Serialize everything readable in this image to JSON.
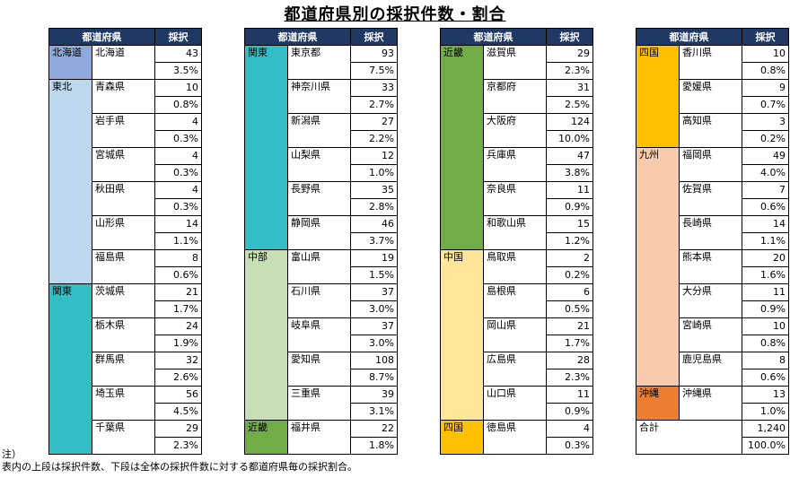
{
  "title": "都道府県別の採択件数・割合",
  "headers": {
    "pref": "都道府県",
    "count": "採択"
  },
  "colors": {
    "header_bg": "#1f3864",
    "hokkaido": "#8ea9db",
    "tohoku": "#bdd7ee",
    "kanto": "#33bdc4",
    "chubu": "#c6e0b4",
    "kinki": "#70ad47",
    "chugoku": "#ffe699",
    "shikoku": "#ffc000",
    "kyushu": "#f8cbad",
    "okinawa": "#ed7d31"
  },
  "blocks": [
    {
      "groups": [
        {
          "region": "北海道",
          "color": "hokkaido",
          "rows": [
            {
              "pref": "北海道",
              "count": "43",
              "pct": "3.5%"
            }
          ]
        },
        {
          "region": "東北",
          "color": "tohoku",
          "rows": [
            {
              "pref": "青森県",
              "count": "10",
              "pct": "0.8%"
            },
            {
              "pref": "岩手県",
              "count": "4",
              "pct": "0.3%"
            },
            {
              "pref": "宮城県",
              "count": "4",
              "pct": "0.3%"
            },
            {
              "pref": "秋田県",
              "count": "4",
              "pct": "0.3%"
            },
            {
              "pref": "山形県",
              "count": "14",
              "pct": "1.1%"
            },
            {
              "pref": "福島県",
              "count": "8",
              "pct": "0.6%"
            }
          ]
        },
        {
          "region": "関東",
          "color": "kanto",
          "rows": [
            {
              "pref": "茨城県",
              "count": "21",
              "pct": "1.7%"
            },
            {
              "pref": "栃木県",
              "count": "24",
              "pct": "1.9%"
            },
            {
              "pref": "群馬県",
              "count": "32",
              "pct": "2.6%"
            },
            {
              "pref": "埼玉県",
              "count": "56",
              "pct": "4.5%"
            },
            {
              "pref": "千葉県",
              "count": "29",
              "pct": "2.3%"
            }
          ]
        }
      ]
    },
    {
      "groups": [
        {
          "region": "関東",
          "color": "kanto",
          "rows": [
            {
              "pref": "東京都",
              "count": "93",
              "pct": "7.5%"
            },
            {
              "pref": "神奈川県",
              "count": "33",
              "pct": "2.7%"
            },
            {
              "pref": "新潟県",
              "count": "27",
              "pct": "2.2%"
            },
            {
              "pref": "山梨県",
              "count": "12",
              "pct": "1.0%"
            },
            {
              "pref": "長野県",
              "count": "35",
              "pct": "2.8%"
            },
            {
              "pref": "静岡県",
              "count": "46",
              "pct": "3.7%"
            }
          ]
        },
        {
          "region": "中部",
          "color": "chubu",
          "rows": [
            {
              "pref": "富山県",
              "count": "19",
              "pct": "1.5%"
            },
            {
              "pref": "石川県",
              "count": "37",
              "pct": "3.0%"
            },
            {
              "pref": "岐阜県",
              "count": "37",
              "pct": "3.0%"
            },
            {
              "pref": "愛知県",
              "count": "108",
              "pct": "8.7%"
            },
            {
              "pref": "三重県",
              "count": "39",
              "pct": "3.1%"
            }
          ]
        },
        {
          "region": "近畿",
          "color": "kinki",
          "rows": [
            {
              "pref": "福井県",
              "count": "22",
              "pct": "1.8%"
            }
          ]
        }
      ]
    },
    {
      "groups": [
        {
          "region": "近畿",
          "color": "kinki",
          "rows": [
            {
              "pref": "滋賀県",
              "count": "29",
              "pct": "2.3%"
            },
            {
              "pref": "京都府",
              "count": "31",
              "pct": "2.5%"
            },
            {
              "pref": "大阪府",
              "count": "124",
              "pct": "10.0%"
            },
            {
              "pref": "兵庫県",
              "count": "47",
              "pct": "3.8%"
            },
            {
              "pref": "奈良県",
              "count": "11",
              "pct": "0.9%"
            },
            {
              "pref": "和歌山県",
              "count": "15",
              "pct": "1.2%"
            }
          ]
        },
        {
          "region": "中国",
          "color": "chugoku",
          "rows": [
            {
              "pref": "鳥取県",
              "count": "2",
              "pct": "0.2%"
            },
            {
              "pref": "島根県",
              "count": "6",
              "pct": "0.5%"
            },
            {
              "pref": "岡山県",
              "count": "21",
              "pct": "1.7%"
            },
            {
              "pref": "広島県",
              "count": "28",
              "pct": "2.3%"
            },
            {
              "pref": "山口県",
              "count": "11",
              "pct": "0.9%"
            }
          ]
        },
        {
          "region": "四国",
          "color": "shikoku",
          "rows": [
            {
              "pref": "徳島県",
              "count": "4",
              "pct": "0.3%"
            }
          ]
        }
      ]
    },
    {
      "groups": [
        {
          "region": "四国",
          "color": "shikoku",
          "rows": [
            {
              "pref": "香川県",
              "count": "10",
              "pct": "0.8%"
            },
            {
              "pref": "愛媛県",
              "count": "9",
              "pct": "0.7%"
            },
            {
              "pref": "高知県",
              "count": "3",
              "pct": "0.2%"
            }
          ]
        },
        {
          "region": "九州",
          "color": "kyushu",
          "rows": [
            {
              "pref": "福岡県",
              "count": "49",
              "pct": "4.0%"
            },
            {
              "pref": "佐賀県",
              "count": "7",
              "pct": "0.6%"
            },
            {
              "pref": "長崎県",
              "count": "14",
              "pct": "1.1%"
            },
            {
              "pref": "熊本県",
              "count": "20",
              "pct": "1.6%"
            },
            {
              "pref": "大分県",
              "count": "11",
              "pct": "0.9%"
            },
            {
              "pref": "宮崎県",
              "count": "10",
              "pct": "0.8%"
            },
            {
              "pref": "鹿児島県",
              "count": "8",
              "pct": "0.6%"
            }
          ]
        },
        {
          "region": "沖縄",
          "color": "okinawa",
          "rows": [
            {
              "pref": "沖縄県",
              "count": "13",
              "pct": "1.0%"
            }
          ]
        }
      ],
      "total": {
        "label": "合計",
        "count": "1,240",
        "pct": "100.0%"
      }
    }
  ],
  "note": {
    "heading": "注）",
    "text": "表内の上段は採択件数、下段は全体の採択件数に対する都道府県毎の採択割合。"
  }
}
